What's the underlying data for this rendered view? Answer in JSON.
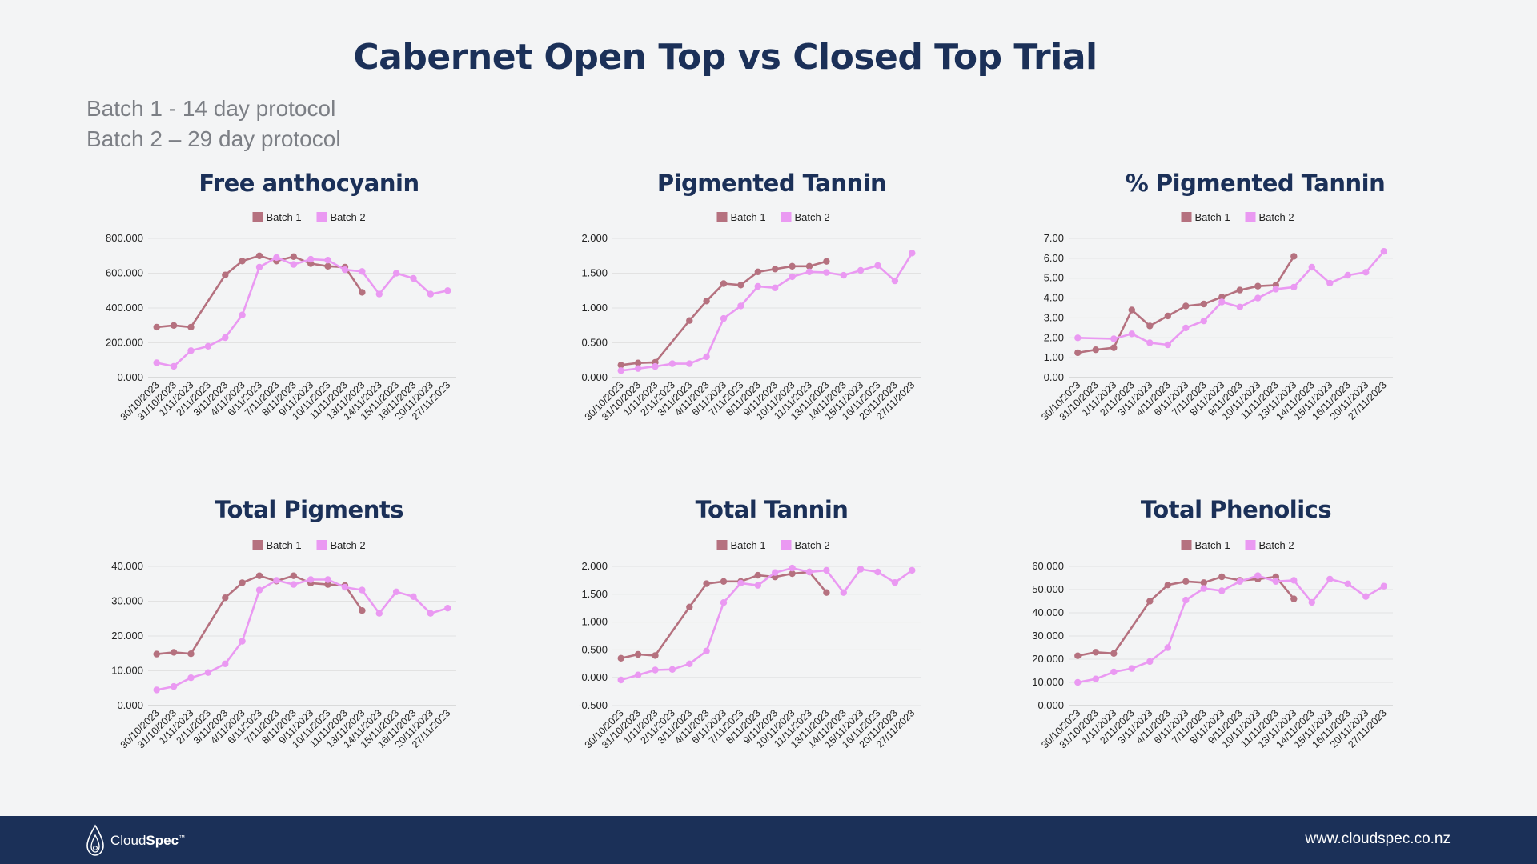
{
  "page": {
    "title": "Cabernet Open Top vs Closed Top Trial",
    "subtitle_lines": [
      "Batch 1 - 14 day protocol",
      "Batch 2 –  29 day protocol"
    ]
  },
  "footer": {
    "logo_brand_light": "Cloud",
    "logo_brand_bold": "Spec",
    "logo_mark": "™",
    "url": "www.cloudspec.co.nz",
    "bg_color": "#1b3058"
  },
  "colors": {
    "batch1": "#b5717f",
    "batch2": "#ea99f2",
    "title": "#1b3058"
  },
  "chart_data": [
    {
      "type": "line",
      "title": "Free anthocyanin",
      "categories": [
        "30/10/2023",
        "31/10/2023",
        "1/11/2023",
        "2/11/2023",
        "3/11/2023",
        "4/11/2023",
        "6/11/2023",
        "7/11/2023",
        "8/11/2023",
        "9/11/2023",
        "10/11/2023",
        "11/11/2023",
        "13/11/2023",
        "14/11/2023",
        "15/11/2023",
        "16/11/2023",
        "20/11/2023",
        "27/11/2023"
      ],
      "yticks": [
        "0.000",
        "200.000",
        "400.000",
        "600.000",
        "800.000"
      ],
      "ylim": [
        0,
        800
      ],
      "legend": "top",
      "grid": true,
      "series": [
        {
          "name": "Batch 1",
          "color": "#b5717f",
          "points": [
            [
              0,
              290
            ],
            [
              1,
              300
            ],
            [
              2,
              290
            ],
            [
              4,
              590
            ],
            [
              5,
              670
            ],
            [
              6,
              700
            ],
            [
              7,
              670
            ],
            [
              8,
              695
            ],
            [
              9,
              655
            ],
            [
              10,
              640
            ],
            [
              11,
              635
            ],
            [
              12,
              490
            ]
          ]
        },
        {
          "name": "Batch 2",
          "color": "#ea99f2",
          "points": [
            [
              0,
              85
            ],
            [
              1,
              65
            ],
            [
              2,
              155
            ],
            [
              3,
              180
            ],
            [
              4,
              230
            ],
            [
              5,
              360
            ],
            [
              6,
              635
            ],
            [
              7,
              690
            ],
            [
              8,
              650
            ],
            [
              9,
              680
            ],
            [
              10,
              675
            ],
            [
              11,
              620
            ],
            [
              12,
              610
            ],
            [
              13,
              480
            ],
            [
              14,
              600
            ],
            [
              15,
              570
            ],
            [
              16,
              480
            ],
            [
              17,
              500
            ]
          ]
        }
      ]
    },
    {
      "type": "line",
      "title": "Pigmented Tannin",
      "categories": [
        "30/10/2023",
        "31/10/2023",
        "1/11/2023",
        "2/11/2023",
        "3/11/2023",
        "4/11/2023",
        "6/11/2023",
        "7/11/2023",
        "8/11/2023",
        "9/11/2023",
        "10/11/2023",
        "11/11/2023",
        "13/11/2023",
        "14/11/2023",
        "15/11/2023",
        "16/11/2023",
        "20/11/2023",
        "27/11/2023"
      ],
      "yticks": [
        "0.000",
        "0.500",
        "1.000",
        "1.500",
        "2.000"
      ],
      "ylim": [
        0,
        2
      ],
      "legend": "top",
      "grid": true,
      "series": [
        {
          "name": "Batch 1",
          "color": "#b5717f",
          "points": [
            [
              0,
              0.18
            ],
            [
              1,
              0.21
            ],
            [
              2,
              0.22
            ],
            [
              4,
              0.82
            ],
            [
              5,
              1.1
            ],
            [
              6,
              1.35
            ],
            [
              7,
              1.33
            ],
            [
              8,
              1.52
            ],
            [
              9,
              1.56
            ],
            [
              10,
              1.6
            ],
            [
              11,
              1.6
            ],
            [
              12,
              1.67
            ]
          ]
        },
        {
          "name": "Batch 2",
          "color": "#ea99f2",
          "points": [
            [
              0,
              0.1
            ],
            [
              1,
              0.13
            ],
            [
              2,
              0.16
            ],
            [
              3,
              0.2
            ],
            [
              4,
              0.2
            ],
            [
              5,
              0.3
            ],
            [
              6,
              0.85
            ],
            [
              7,
              1.03
            ],
            [
              8,
              1.31
            ],
            [
              9,
              1.29
            ],
            [
              10,
              1.45
            ],
            [
              11,
              1.52
            ],
            [
              12,
              1.51
            ],
            [
              13,
              1.47
            ],
            [
              14,
              1.54
            ],
            [
              15,
              1.61
            ],
            [
              16,
              1.39
            ],
            [
              17,
              1.79
            ]
          ]
        }
      ]
    },
    {
      "type": "line",
      "title": "% Pigmented Tannin",
      "categories": [
        "30/10/2023",
        "31/10/2023",
        "1/11/2023",
        "2/11/2023",
        "3/11/2023",
        "4/11/2023",
        "6/11/2023",
        "7/11/2023",
        "8/11/2023",
        "9/11/2023",
        "10/11/2023",
        "11/11/2023",
        "13/11/2023",
        "14/11/2023",
        "15/11/2023",
        "16/11/2023",
        "20/11/2023",
        "27/11/2023"
      ],
      "yticks": [
        "0.00",
        "1.00",
        "2.00",
        "3.00",
        "4.00",
        "5.00",
        "6.00",
        "7.00"
      ],
      "ylim": [
        0,
        7
      ],
      "legend": "top",
      "grid": true,
      "series": [
        {
          "name": "Batch 1",
          "color": "#b5717f",
          "points": [
            [
              0,
              1.25
            ],
            [
              1,
              1.4
            ],
            [
              2,
              1.5
            ],
            [
              3,
              3.4
            ],
            [
              4,
              2.6
            ],
            [
              5,
              3.1
            ],
            [
              6,
              3.6
            ],
            [
              7,
              3.7
            ],
            [
              8,
              4.05
            ],
            [
              9,
              4.4
            ],
            [
              10,
              4.6
            ],
            [
              11,
              4.65
            ],
            [
              12,
              6.1
            ]
          ]
        },
        {
          "name": "Batch 2",
          "color": "#ea99f2",
          "points": [
            [
              0,
              2.0
            ],
            [
              2,
              1.95
            ],
            [
              3,
              2.2
            ],
            [
              4,
              1.75
            ],
            [
              5,
              1.65
            ],
            [
              6,
              2.5
            ],
            [
              7,
              2.85
            ],
            [
              8,
              3.8
            ],
            [
              9,
              3.55
            ],
            [
              10,
              4.0
            ],
            [
              11,
              4.45
            ],
            [
              12,
              4.55
            ],
            [
              13,
              5.55
            ],
            [
              14,
              4.75
            ],
            [
              15,
              5.15
            ],
            [
              16,
              5.3
            ],
            [
              17,
              6.35
            ]
          ]
        }
      ]
    },
    {
      "type": "line",
      "title": "Total Pigments",
      "categories": [
        "30/10/2023",
        "31/10/2023",
        "1/11/2023",
        "2/11/2023",
        "3/11/2023",
        "4/11/2023",
        "6/11/2023",
        "7/11/2023",
        "8/11/2023",
        "9/11/2023",
        "10/11/2023",
        "11/11/2023",
        "13/11/2023",
        "14/11/2023",
        "15/11/2023",
        "16/11/2023",
        "20/11/2023",
        "27/11/2023"
      ],
      "yticks": [
        "0.000",
        "10.000",
        "20.000",
        "30.000",
        "40.000"
      ],
      "ylim": [
        0,
        40
      ],
      "legend": "top",
      "grid": true,
      "series": [
        {
          "name": "Batch 1",
          "color": "#b5717f",
          "points": [
            [
              0,
              14.8
            ],
            [
              1,
              15.3
            ],
            [
              2,
              14.9
            ],
            [
              4,
              31
            ],
            [
              5,
              35.3
            ],
            [
              6,
              37.3
            ],
            [
              7,
              35.8
            ],
            [
              8,
              37.3
            ],
            [
              9,
              35.2
            ],
            [
              10,
              34.8
            ],
            [
              11,
              34.5
            ],
            [
              12,
              27.3
            ]
          ]
        },
        {
          "name": "Batch 2",
          "color": "#ea99f2",
          "points": [
            [
              0,
              4.5
            ],
            [
              1,
              5.5
            ],
            [
              2,
              8
            ],
            [
              3,
              9.5
            ],
            [
              4,
              12
            ],
            [
              5,
              18.5
            ],
            [
              6,
              33.2
            ],
            [
              7,
              36
            ],
            [
              8,
              34.8
            ],
            [
              9,
              36.2
            ],
            [
              10,
              36.2
            ],
            [
              11,
              34
            ],
            [
              12,
              33.2
            ],
            [
              13,
              26.5
            ],
            [
              14,
              32.7
            ],
            [
              15,
              31.3
            ],
            [
              16,
              26.5
            ],
            [
              17,
              28
            ]
          ]
        }
      ]
    },
    {
      "type": "line",
      "title": "Total Tannin",
      "categories": [
        "30/10/2023",
        "31/10/2023",
        "1/11/2023",
        "2/11/2023",
        "3/11/2023",
        "4/11/2023",
        "6/11/2023",
        "7/11/2023",
        "8/11/2023",
        "9/11/2023",
        "10/11/2023",
        "11/11/2023",
        "13/11/2023",
        "14/11/2023",
        "15/11/2023",
        "16/11/2023",
        "20/11/2023",
        "27/11/2023"
      ],
      "yticks": [
        "-0.500",
        "0.000",
        "0.500",
        "1.000",
        "1.500",
        "2.000"
      ],
      "ylim": [
        -0.5,
        2
      ],
      "legend": "top",
      "grid": true,
      "series": [
        {
          "name": "Batch 1",
          "color": "#b5717f",
          "points": [
            [
              0,
              0.35
            ],
            [
              1,
              0.42
            ],
            [
              2,
              0.4
            ],
            [
              4,
              1.27
            ],
            [
              5,
              1.69
            ],
            [
              6,
              1.73
            ],
            [
              7,
              1.73
            ],
            [
              8,
              1.84
            ],
            [
              9,
              1.81
            ],
            [
              10,
              1.87
            ],
            [
              11,
              1.9
            ],
            [
              12,
              1.53
            ]
          ]
        },
        {
          "name": "Batch 2",
          "color": "#ea99f2",
          "points": [
            [
              0,
              -0.04
            ],
            [
              1,
              0.05
            ],
            [
              2,
              0.14
            ],
            [
              3,
              0.15
            ],
            [
              4,
              0.25
            ],
            [
              5,
              0.48
            ],
            [
              6,
              1.35
            ],
            [
              7,
              1.7
            ],
            [
              8,
              1.66
            ],
            [
              9,
              1.89
            ],
            [
              10,
              1.97
            ],
            [
              11,
              1.9
            ],
            [
              12,
              1.93
            ],
            [
              13,
              1.53
            ],
            [
              14,
              1.95
            ],
            [
              15,
              1.9
            ],
            [
              16,
              1.71
            ],
            [
              17,
              1.93
            ]
          ]
        }
      ]
    },
    {
      "type": "line",
      "title": "Total Phenolics",
      "categories": [
        "30/10/2023",
        "31/10/2023",
        "1/11/2023",
        "2/11/2023",
        "3/11/2023",
        "4/11/2023",
        "6/11/2023",
        "7/11/2023",
        "8/11/2023",
        "9/11/2023",
        "10/11/2023",
        "11/11/2023",
        "13/11/2023",
        "14/11/2023",
        "15/11/2023",
        "16/11/2023",
        "20/11/2023",
        "27/11/2023"
      ],
      "yticks": [
        "0.000",
        "10.000",
        "20.000",
        "30.000",
        "40.000",
        "50.000",
        "60.000"
      ],
      "ylim": [
        0,
        60
      ],
      "legend": "top",
      "grid": true,
      "series": [
        {
          "name": "Batch 1",
          "color": "#b5717f",
          "points": [
            [
              0,
              21.5
            ],
            [
              1,
              23
            ],
            [
              2,
              22.5
            ],
            [
              4,
              45
            ],
            [
              5,
              52
            ],
            [
              6,
              53.5
            ],
            [
              7,
              53
            ],
            [
              8,
              55.5
            ],
            [
              9,
              54
            ],
            [
              10,
              54.5
            ],
            [
              11,
              55.5
            ],
            [
              12,
              46
            ]
          ]
        },
        {
          "name": "Batch 2",
          "color": "#ea99f2",
          "points": [
            [
              0,
              10
            ],
            [
              1,
              11.5
            ],
            [
              2,
              14.5
            ],
            [
              3,
              16
            ],
            [
              4,
              19
            ],
            [
              5,
              25
            ],
            [
              6,
              45.5
            ],
            [
              7,
              50.5
            ],
            [
              8,
              49.5
            ],
            [
              9,
              53.5
            ],
            [
              10,
              56
            ],
            [
              11,
              53.5
            ],
            [
              12,
              54
            ],
            [
              13,
              44.5
            ],
            [
              14,
              54.5
            ],
            [
              15,
              52.5
            ],
            [
              16,
              47
            ],
            [
              17,
              51.5
            ]
          ]
        }
      ]
    }
  ]
}
